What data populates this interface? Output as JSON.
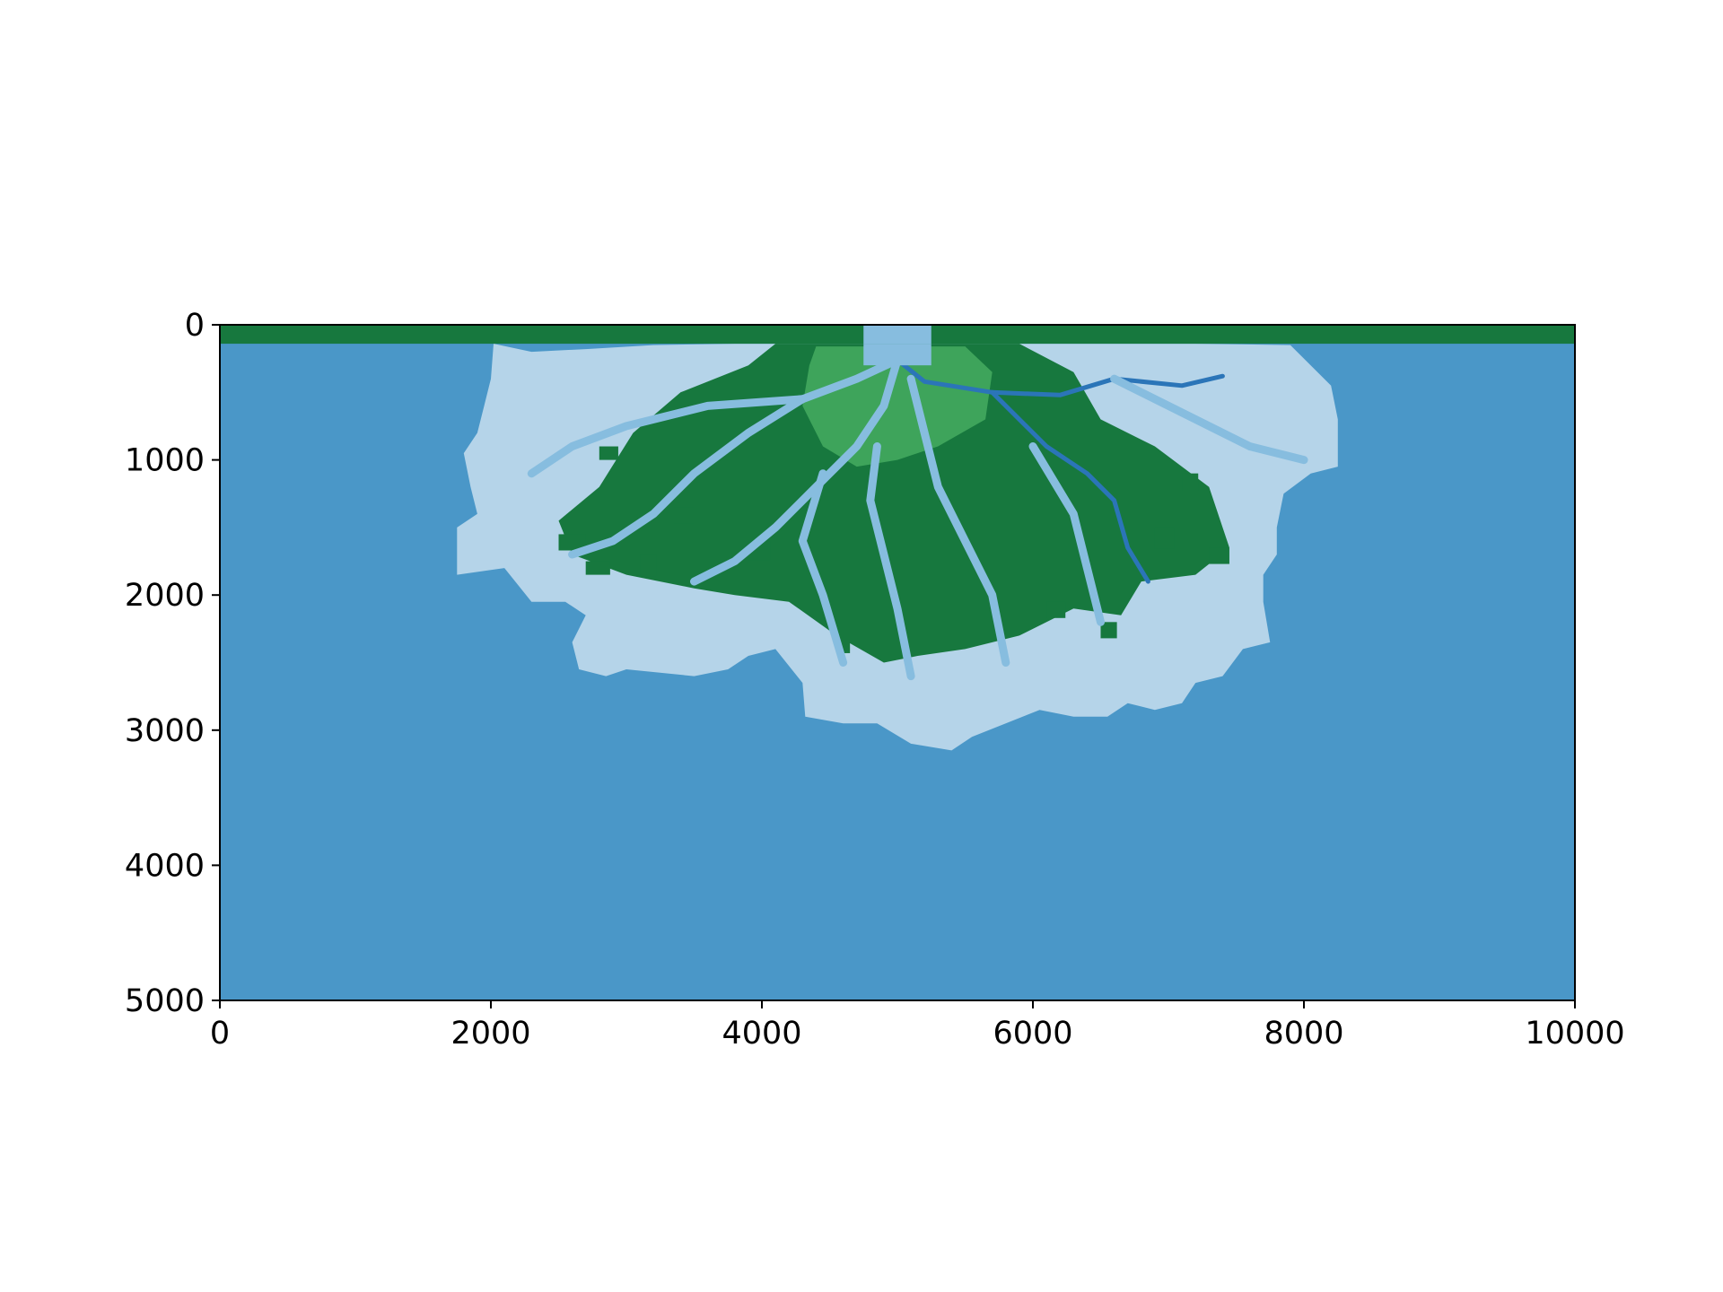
{
  "chart_data": {
    "type": "heatmap",
    "title": "",
    "xlabel": "",
    "ylabel": "",
    "xlim": [
      0,
      10000
    ],
    "ylim": [
      5000,
      0
    ],
    "xticks": [
      "0",
      "2000",
      "4000",
      "6000",
      "8000",
      "10000"
    ],
    "yticks": [
      "0",
      "1000",
      "2000",
      "3000",
      "4000",
      "5000"
    ],
    "grid": false,
    "legend": "none",
    "colors": {
      "ocean": "#4a97c8",
      "shallow": "#b5d4e9",
      "channel_light": "#87bddf",
      "channel_deep": "#2b75b8",
      "land_bright": "#3ea45b",
      "land_dark": "#17783e"
    },
    "regions": {
      "land_strip": {
        "x": [
          0,
          10000
        ],
        "y": [
          0,
          140
        ],
        "class": "land_dark"
      },
      "inlet_channel": {
        "x": [
          4750,
          5250
        ],
        "y": [
          0,
          300
        ],
        "class": "channel_light"
      },
      "delta_extent": {
        "x_range": [
          1750,
          8300
        ],
        "y_max": 3150
      }
    },
    "delta_outline": [
      [
        2020,
        140
      ],
      [
        2300,
        200
      ],
      [
        2700,
        180
      ],
      [
        3200,
        150
      ],
      [
        3800,
        140
      ],
      [
        4750,
        140
      ],
      [
        5250,
        140
      ],
      [
        6200,
        140
      ],
      [
        7200,
        140
      ],
      [
        7900,
        150
      ],
      [
        8050,
        300
      ],
      [
        8200,
        450
      ],
      [
        8250,
        700
      ],
      [
        8250,
        1050
      ],
      [
        8050,
        1100
      ],
      [
        7850,
        1250
      ],
      [
        7800,
        1500
      ],
      [
        7800,
        1700
      ],
      [
        7700,
        1850
      ],
      [
        7700,
        2050
      ],
      [
        7750,
        2350
      ],
      [
        7550,
        2400
      ],
      [
        7400,
        2600
      ],
      [
        7200,
        2650
      ],
      [
        7100,
        2800
      ],
      [
        6900,
        2850
      ],
      [
        6700,
        2800
      ],
      [
        6550,
        2900
      ],
      [
        6300,
        2900
      ],
      [
        6050,
        2850
      ],
      [
        5800,
        2950
      ],
      [
        5550,
        3050
      ],
      [
        5400,
        3150
      ],
      [
        5100,
        3100
      ],
      [
        4850,
        2950
      ],
      [
        4600,
        2950
      ],
      [
        4320,
        2900
      ],
      [
        4300,
        2650
      ],
      [
        4100,
        2400
      ],
      [
        3900,
        2450
      ],
      [
        3750,
        2550
      ],
      [
        3500,
        2600
      ],
      [
        3000,
        2550
      ],
      [
        2850,
        2600
      ],
      [
        2650,
        2550
      ],
      [
        2600,
        2350
      ],
      [
        2700,
        2150
      ],
      [
        2550,
        2050
      ],
      [
        2300,
        2050
      ],
      [
        2100,
        1800
      ],
      [
        1750,
        1850
      ],
      [
        1750,
        1500
      ],
      [
        1900,
        1400
      ],
      [
        1850,
        1200
      ],
      [
        1800,
        950
      ],
      [
        1900,
        800
      ],
      [
        1950,
        600
      ],
      [
        2000,
        400
      ],
      [
        2020,
        140
      ]
    ],
    "land_core_outline": [
      [
        4100,
        140
      ],
      [
        5900,
        140
      ],
      [
        6300,
        350
      ],
      [
        6500,
        700
      ],
      [
        6900,
        900
      ],
      [
        7300,
        1200
      ],
      [
        7450,
        1650
      ],
      [
        7200,
        1850
      ],
      [
        6800,
        1900
      ],
      [
        6650,
        2150
      ],
      [
        6300,
        2100
      ],
      [
        5900,
        2300
      ],
      [
        5500,
        2400
      ],
      [
        5150,
        2450
      ],
      [
        4900,
        2500
      ],
      [
        4550,
        2300
      ],
      [
        4200,
        2050
      ],
      [
        3800,
        2000
      ],
      [
        3500,
        1950
      ],
      [
        3000,
        1850
      ],
      [
        2600,
        1700
      ],
      [
        2500,
        1450
      ],
      [
        2800,
        1200
      ],
      [
        3050,
        800
      ],
      [
        3400,
        500
      ],
      [
        3900,
        300
      ],
      [
        4100,
        140
      ]
    ],
    "land_bright_outline": [
      [
        4400,
        160
      ],
      [
        5500,
        160
      ],
      [
        5700,
        350
      ],
      [
        5650,
        700
      ],
      [
        5300,
        900
      ],
      [
        5000,
        1000
      ],
      [
        4700,
        1050
      ],
      [
        4450,
        900
      ],
      [
        4300,
        600
      ],
      [
        4350,
        300
      ],
      [
        4400,
        160
      ]
    ],
    "channels": [
      {
        "class": "channel_deep",
        "points": [
          [
            5000,
            260
          ],
          [
            5200,
            420
          ],
          [
            5700,
            500
          ],
          [
            6200,
            520
          ],
          [
            6600,
            400
          ],
          [
            7100,
            450
          ],
          [
            7400,
            380
          ]
        ]
      },
      {
        "class": "channel_deep",
        "points": [
          [
            5700,
            500
          ],
          [
            6100,
            900
          ],
          [
            6400,
            1100
          ],
          [
            6600,
            1300
          ],
          [
            6700,
            1650
          ],
          [
            6850,
            1900
          ]
        ]
      },
      {
        "class": "channel_light",
        "points": [
          [
            5000,
            260
          ],
          [
            4700,
            400
          ],
          [
            4300,
            550
          ],
          [
            3900,
            800
          ],
          [
            3500,
            1100
          ],
          [
            3200,
            1400
          ],
          [
            2900,
            1600
          ],
          [
            2600,
            1700
          ]
        ]
      },
      {
        "class": "channel_light",
        "points": [
          [
            5000,
            260
          ],
          [
            4900,
            600
          ],
          [
            4700,
            900
          ],
          [
            4400,
            1200
          ],
          [
            4100,
            1500
          ],
          [
            3800,
            1750
          ],
          [
            3500,
            1900
          ]
        ]
      },
      {
        "class": "channel_light",
        "points": [
          [
            5100,
            400
          ],
          [
            5200,
            800
          ],
          [
            5300,
            1200
          ],
          [
            5500,
            1600
          ],
          [
            5700,
            2000
          ],
          [
            5800,
            2500
          ]
        ]
      },
      {
        "class": "channel_light",
        "points": [
          [
            4850,
            900
          ],
          [
            4800,
            1300
          ],
          [
            4900,
            1700
          ],
          [
            5000,
            2100
          ],
          [
            5100,
            2600
          ]
        ]
      },
      {
        "class": "channel_light",
        "points": [
          [
            4300,
            550
          ],
          [
            3600,
            600
          ],
          [
            3000,
            750
          ],
          [
            2600,
            900
          ],
          [
            2300,
            1100
          ]
        ]
      },
      {
        "class": "channel_light",
        "points": [
          [
            6000,
            900
          ],
          [
            6300,
            1400
          ],
          [
            6400,
            1800
          ],
          [
            6500,
            2200
          ]
        ]
      },
      {
        "class": "channel_light",
        "points": [
          [
            6600,
            400
          ],
          [
            7200,
            700
          ],
          [
            7600,
            900
          ],
          [
            8000,
            1000
          ]
        ]
      },
      {
        "class": "channel_light",
        "points": [
          [
            4450,
            1100
          ],
          [
            4300,
            1600
          ],
          [
            4450,
            2000
          ],
          [
            4600,
            2500
          ]
        ]
      }
    ],
    "land_patches": [
      [
        2500,
        1550,
        200,
        120
      ],
      [
        2700,
        1750,
        180,
        100
      ],
      [
        3100,
        1700,
        120,
        160
      ],
      [
        3350,
        1350,
        150,
        120
      ],
      [
        3900,
        1600,
        160,
        140
      ],
      [
        4550,
        2250,
        100,
        180
      ],
      [
        6100,
        2050,
        140,
        120
      ],
      [
        6500,
        2200,
        120,
        120
      ],
      [
        6900,
        1500,
        140,
        160
      ],
      [
        7300,
        1650,
        150,
        120
      ],
      [
        2800,
        900,
        140,
        100
      ],
      [
        7100,
        1100,
        120,
        130
      ]
    ]
  }
}
